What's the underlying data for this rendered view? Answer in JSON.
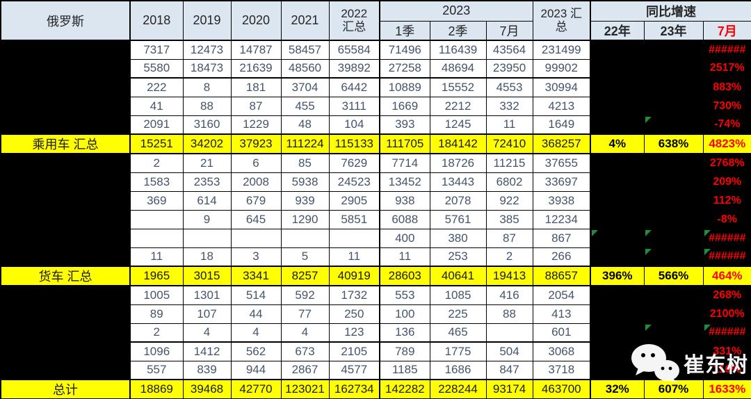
{
  "title": "俄罗斯",
  "colors": {
    "header_bg": "#DCE6F1",
    "highlight_yellow": "#FFFF00",
    "growth_red": "#FF0000",
    "error_marker_green": "#1E8E3E",
    "redaction_black": "#000000"
  },
  "header": {
    "region": "俄罗斯",
    "years": [
      "2018",
      "2019",
      "2020",
      "2021"
    ],
    "y2022_lines": [
      "2022",
      "汇总"
    ],
    "y2023_group": "2023",
    "y2023_sub": [
      "1季",
      "2季",
      "7月"
    ],
    "y2023_total_lines": [
      "2023 汇",
      "总"
    ],
    "growth_group": "同比增速",
    "growth_sub": [
      "22年",
      "23年",
      "7月"
    ]
  },
  "watermark": {
    "text": "崔东树",
    "icon": "wechat-icon"
  },
  "chart_data": {
    "type": "table",
    "title": "俄罗斯",
    "columns": [
      "俄罗斯",
      "2018",
      "2019",
      "2020",
      "2021",
      "2022 汇总",
      "2023 1季",
      "2023 2季",
      "2023 7月",
      "2023 汇总",
      "同比增速 22年",
      "同比增速 23年",
      "同比增速 7月"
    ],
    "layout_note": "row labels and 22年/23年 growth cells of non-summary rows are blacked out; summary rows highlighted yellow",
    "rows": [
      {
        "label": "",
        "summary": false,
        "values": [
          "7317",
          "12473",
          "14787",
          "58457",
          "65584",
          "71496",
          "116439",
          "43564",
          "231499"
        ],
        "growth": [
          "",
          "",
          "######"
        ],
        "error_markers": []
      },
      {
        "label": "",
        "summary": false,
        "values": [
          "5580",
          "18473",
          "21639",
          "48560",
          "39892",
          "27258",
          "48694",
          "23950",
          "99902"
        ],
        "growth": [
          "",
          "",
          "2517%"
        ],
        "error_markers": []
      },
      {
        "label": "",
        "summary": false,
        "values": [
          "222",
          "8",
          "181",
          "3704",
          "6442",
          "10889",
          "15552",
          "4553",
          "30994"
        ],
        "growth": [
          "",
          "",
          "883%"
        ],
        "error_markers": []
      },
      {
        "label": "",
        "summary": false,
        "values": [
          "41",
          "88",
          "87",
          "455",
          "3111",
          "1669",
          "2212",
          "332",
          "4213"
        ],
        "growth": [
          "",
          "",
          "730%"
        ],
        "error_markers": []
      },
      {
        "label": "",
        "summary": false,
        "values": [
          "2091",
          "3160",
          "1229",
          "48",
          "104",
          "393",
          "1245",
          "11",
          "1649"
        ],
        "growth": [
          "",
          "",
          "-74%"
        ],
        "error_markers": [
          1
        ]
      },
      {
        "label": "乘用车 汇总",
        "summary": true,
        "values": [
          "15251",
          "34202",
          "37923",
          "111224",
          "115133",
          "111705",
          "184142",
          "72410",
          "368257"
        ],
        "growth": [
          "4%",
          "638%",
          "4823%"
        ],
        "error_markers": []
      },
      {
        "label": "",
        "summary": false,
        "values": [
          "2",
          "21",
          "6",
          "85",
          "7629",
          "7714",
          "18726",
          "11215",
          "37655"
        ],
        "growth": [
          "",
          "",
          "2768%"
        ],
        "error_markers": []
      },
      {
        "label": "",
        "summary": false,
        "values": [
          "1583",
          "2353",
          "2008",
          "5938",
          "24523",
          "13452",
          "13443",
          "6802",
          "33697"
        ],
        "growth": [
          "",
          "",
          "209%"
        ],
        "error_markers": []
      },
      {
        "label": "",
        "summary": false,
        "values": [
          "369",
          "614",
          "679",
          "939",
          "2905",
          "938",
          "2078",
          "922",
          "3938"
        ],
        "growth": [
          "",
          "",
          "112%"
        ],
        "error_markers": []
      },
      {
        "label": "",
        "summary": false,
        "values": [
          "",
          "9",
          "645",
          "1290",
          "5851",
          "6088",
          "5761",
          "385",
          "12234"
        ],
        "growth": [
          "",
          "",
          "-8%"
        ],
        "error_markers": []
      },
      {
        "label": "",
        "summary": false,
        "values": [
          "",
          "",
          "",
          "",
          "",
          "400",
          "380",
          "87",
          "867"
        ],
        "growth": [
          "",
          "",
          "######"
        ],
        "error_markers": [
          0,
          1,
          2
        ]
      },
      {
        "label": "",
        "summary": false,
        "values": [
          "11",
          "18",
          "3",
          "5",
          "11",
          "11",
          "253",
          "2",
          "266"
        ],
        "growth": [
          "",
          "",
          "######"
        ],
        "error_markers": [
          1,
          2
        ]
      },
      {
        "label": "货车 汇总",
        "summary": true,
        "values": [
          "1965",
          "3015",
          "3341",
          "8257",
          "40919",
          "28603",
          "40641",
          "19413",
          "88657"
        ],
        "growth": [
          "396%",
          "566%",
          "464%"
        ],
        "error_markers": []
      },
      {
        "label": "",
        "summary": false,
        "values": [
          "1005",
          "1301",
          "514",
          "592",
          "1732",
          "553",
          "1085",
          "416",
          "2054"
        ],
        "growth": [
          "",
          "",
          "268%"
        ],
        "error_markers": []
      },
      {
        "label": "",
        "summary": false,
        "values": [
          "89",
          "107",
          "44",
          "77",
          "250",
          "100",
          "225",
          "88",
          "413"
        ],
        "growth": [
          "",
          "",
          "2100%"
        ],
        "error_markers": []
      },
      {
        "label": "",
        "summary": false,
        "values": [
          "2",
          "4",
          "4",
          "4",
          "123",
          "136",
          "465",
          "",
          "601"
        ],
        "growth": [
          "",
          "",
          "######"
        ],
        "error_markers": [
          1,
          2
        ]
      },
      {
        "label": "",
        "summary": false,
        "values": [
          "1096",
          "1412",
          "562",
          "673",
          "2105",
          "789",
          "1775",
          "504",
          "3068"
        ],
        "growth": [
          "",
          "",
          "331%"
        ],
        "error_markers": []
      },
      {
        "label": "",
        "summary": false,
        "values": [
          "557",
          "839",
          "944",
          "2867",
          "4577",
          "1185",
          "1686",
          "847",
          "3718"
        ],
        "growth": [
          "",
          "",
          "116%"
        ],
        "error_markers": []
      },
      {
        "label": "总计",
        "summary": true,
        "values": [
          "18869",
          "39468",
          "42770",
          "123021",
          "162734",
          "142282",
          "228244",
          "93174",
          "463700"
        ],
        "growth": [
          "32%",
          "607%",
          "1633%"
        ],
        "error_markers": []
      }
    ]
  }
}
